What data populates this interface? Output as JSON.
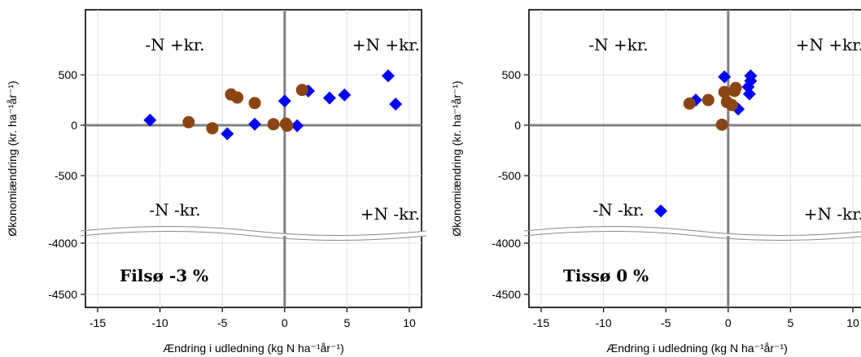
{
  "chart_data": [
    {
      "type": "scatter",
      "name": "Filsø -3 %",
      "xlabel": "Ændring i udledning (kg N ha⁻¹år⁻¹)",
      "ylabel": "Økonomiændring (kr. ha⁻¹år⁻¹)",
      "xlim": [
        -15,
        10
      ],
      "x_ticks": [
        "-15",
        "-10",
        "-5",
        "0",
        "5",
        "10"
      ],
      "y_ticks": [
        "500",
        "0",
        "-500",
        "-4000",
        "-4500"
      ],
      "axis_break": "between -500 and -4000",
      "grid": true,
      "quadrant_labels": {
        "top_left": "-N +kr.",
        "top_right": "+N +kr.",
        "bottom_left": "-N -kr.",
        "bottom_right": "+N -kr."
      },
      "series": [
        {
          "marker": "diamond",
          "color": "#0000ff",
          "points": [
            {
              "x": -10.8,
              "y": 50
            },
            {
              "x": -4.6,
              "y": -85
            },
            {
              "x": -2.4,
              "y": 10
            },
            {
              "x": 0.0,
              "y": 240
            },
            {
              "x": 1.0,
              "y": -5
            },
            {
              "x": 1.9,
              "y": 340
            },
            {
              "x": 3.6,
              "y": 270
            },
            {
              "x": 4.8,
              "y": 300
            },
            {
              "x": 8.3,
              "y": 490
            },
            {
              "x": 8.9,
              "y": 210
            }
          ]
        },
        {
          "marker": "circle",
          "color": "#8b4513",
          "points": [
            {
              "x": -7.7,
              "y": 30
            },
            {
              "x": -5.8,
              "y": -30
            },
            {
              "x": -4.3,
              "y": 305
            },
            {
              "x": -3.8,
              "y": 275
            },
            {
              "x": -2.4,
              "y": 220
            },
            {
              "x": -0.9,
              "y": 10
            },
            {
              "x": 0.1,
              "y": 15
            },
            {
              "x": 0.2,
              "y": -5
            },
            {
              "x": 1.4,
              "y": 350
            }
          ]
        }
      ]
    },
    {
      "type": "scatter",
      "name": "Tissø 0 %",
      "xlabel": "Ændring i udledning (kg N ha⁻¹år⁻¹)",
      "ylabel": "Økonomiændring (kr. ha⁻¹år⁻¹)",
      "xlim": [
        -15,
        10
      ],
      "x_ticks": [
        "-15",
        "-10",
        "-5",
        "0",
        "5",
        "10"
      ],
      "y_ticks": [
        "500",
        "0",
        "-500",
        "-4000",
        "-4500"
      ],
      "axis_break": "between -500 and -4000",
      "grid": true,
      "quadrant_labels": {
        "top_left": "-N +kr.",
        "top_right": "+N +kr.",
        "bottom_left": "-N -kr.",
        "bottom_right": "+N -kr."
      },
      "series": [
        {
          "marker": "diamond",
          "color": "#0000ff",
          "points": [
            {
              "x": -5.4,
              "y": -850
            },
            {
              "x": -2.6,
              "y": 250
            },
            {
              "x": -0.3,
              "y": 480
            },
            {
              "x": 0.8,
              "y": 160
            },
            {
              "x": 1.6,
              "y": 380
            },
            {
              "x": 1.7,
              "y": 310
            },
            {
              "x": 1.8,
              "y": 440
            },
            {
              "x": 1.8,
              "y": 490
            }
          ]
        },
        {
          "marker": "circle",
          "color": "#8b4513",
          "points": [
            {
              "x": -3.1,
              "y": 215
            },
            {
              "x": -1.6,
              "y": 250
            },
            {
              "x": -0.5,
              "y": 5
            },
            {
              "x": -0.3,
              "y": 330
            },
            {
              "x": -0.1,
              "y": 230
            },
            {
              "x": 0.3,
              "y": 200
            },
            {
              "x": 0.5,
              "y": 340
            },
            {
              "x": 0.6,
              "y": 370
            }
          ]
        }
      ]
    }
  ]
}
